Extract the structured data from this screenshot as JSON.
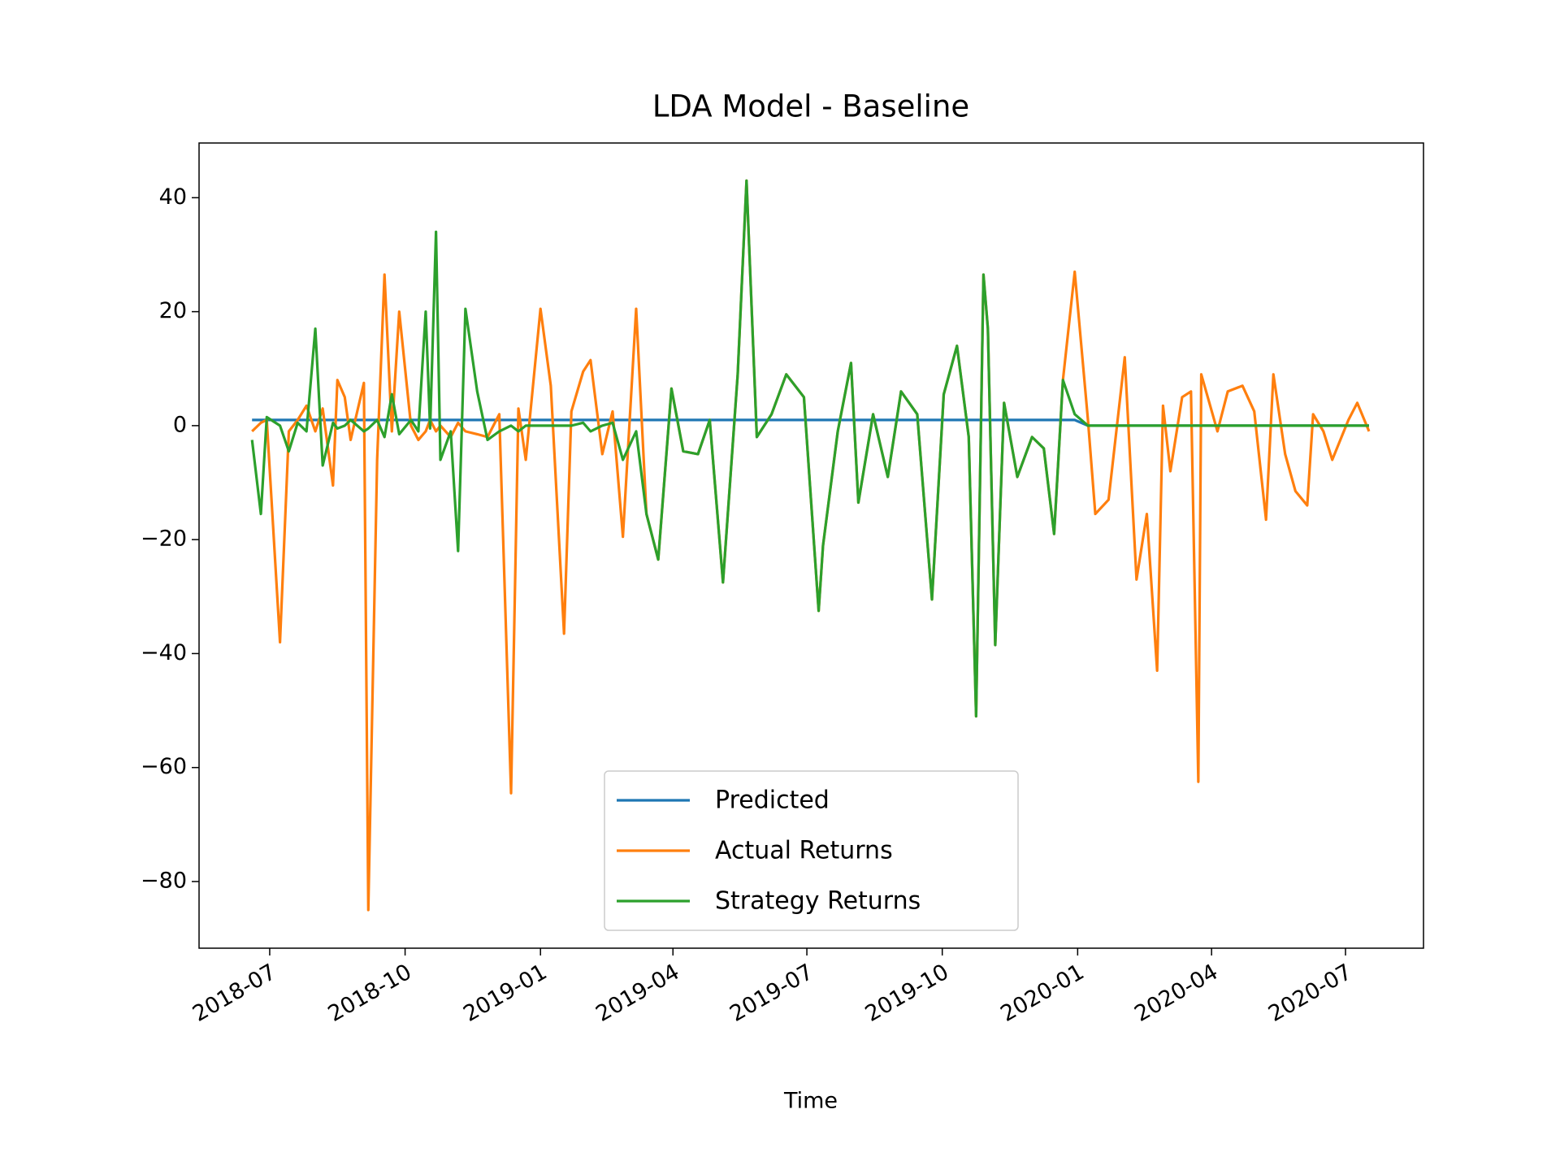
{
  "chart_data": {
    "type": "line",
    "title": "LDA Model - Baseline",
    "x_label": "Time",
    "x": [
      "2018-06-19",
      "2018-06-25",
      "2018-06-29",
      "2018-07-08",
      "2018-07-14",
      "2018-07-20",
      "2018-07-26",
      "2018-08-01",
      "2018-08-06",
      "2018-08-13",
      "2018-08-16",
      "2018-08-21",
      "2018-08-25",
      "2018-09-03",
      "2018-09-06",
      "2018-09-12",
      "2018-09-17",
      "2018-09-22",
      "2018-09-27",
      "2018-10-05",
      "2018-10-10",
      "2018-10-15",
      "2018-10-18",
      "2018-10-22",
      "2018-10-25",
      "2018-11-01",
      "2018-11-06",
      "2018-11-11",
      "2018-11-19",
      "2018-11-26",
      "2018-12-04",
      "2018-12-12",
      "2018-12-17",
      "2018-12-22",
      "2019-01-01",
      "2019-01-08",
      "2019-01-17",
      "2019-01-22",
      "2019-01-30",
      "2019-02-04",
      "2019-02-12",
      "2019-02-19",
      "2019-02-26",
      "2019-03-07",
      "2019-03-14",
      "2019-03-22",
      "2019-03-31",
      "2019-04-08",
      "2019-04-18",
      "2019-04-26",
      "2019-05-05",
      "2019-05-15",
      "2019-05-21",
      "2019-05-28",
      "2019-06-07",
      "2019-06-17",
      "2019-06-29",
      "2019-07-09",
      "2019-07-12",
      "2019-07-22",
      "2019-07-31",
      "2019-08-05",
      "2019-08-15",
      "2019-08-25",
      "2019-09-03",
      "2019-09-14",
      "2019-09-24",
      "2019-10-02",
      "2019-10-11",
      "2019-10-19",
      "2019-10-24",
      "2019-10-29",
      "2019-11-01",
      "2019-11-06",
      "2019-11-12",
      "2019-11-21",
      "2019-12-01",
      "2019-12-09",
      "2019-12-16",
      "2019-12-22",
      "2019-12-30",
      "2020-01-08",
      "2020-01-13",
      "2020-01-22",
      "2020-02-02",
      "2020-02-10",
      "2020-02-17",
      "2020-02-24",
      "2020-02-28",
      "2020-03-04",
      "2020-03-12",
      "2020-03-18",
      "2020-03-23",
      "2020-03-25",
      "2020-04-05",
      "2020-04-12",
      "2020-04-22",
      "2020-04-30",
      "2020-05-08",
      "2020-05-13",
      "2020-05-21",
      "2020-05-28",
      "2020-06-05",
      "2020-06-09",
      "2020-06-16",
      "2020-06-22",
      "2020-07-03",
      "2020-07-09",
      "2020-07-17"
    ],
    "series": [
      {
        "name": "Predicted",
        "color": "#1f77b4",
        "values": [
          1,
          1,
          1,
          1,
          1,
          1,
          1,
          1,
          1,
          1,
          1,
          1,
          1,
          1,
          1,
          1,
          1,
          1,
          1,
          1,
          1,
          1,
          1,
          1,
          1,
          1,
          1,
          1,
          1,
          1,
          1,
          1,
          1,
          1,
          1,
          1,
          1,
          1,
          1,
          1,
          1,
          1,
          1,
          1,
          1,
          1,
          1,
          1,
          1,
          1,
          1,
          1,
          1,
          1,
          1,
          1,
          1,
          1,
          1,
          1,
          1,
          1,
          1,
          1,
          1,
          1,
          1,
          1,
          1,
          1,
          1,
          1,
          1,
          1,
          1,
          1,
          1,
          1,
          1,
          1,
          1,
          0,
          0,
          0,
          0,
          0,
          0,
          0,
          0,
          0,
          0,
          0,
          0,
          0,
          0,
          0,
          0,
          0,
          0,
          0,
          0,
          0,
          0,
          0,
          0,
          0,
          0,
          0,
          0
        ]
      },
      {
        "name": "Actual Returns",
        "color": "#ff7f0e",
        "values": [
          -1,
          0.5,
          1,
          -38,
          -1,
          1,
          3.5,
          -1,
          3,
          -10.5,
          8,
          5,
          -2.5,
          7.5,
          -85,
          -6,
          26.5,
          -1,
          20,
          0,
          -2.5,
          -1,
          1,
          -1,
          0,
          -2,
          0.5,
          -1,
          -1.5,
          -2,
          2,
          -64.5,
          3,
          -6,
          20.5,
          7,
          -36.5,
          2.5,
          9.5,
          11.5,
          -5,
          2.5,
          -19.5,
          20.5,
          -15.5,
          -23.5,
          6.5,
          -4.5,
          -5,
          1,
          -27.5,
          9,
          43,
          -2,
          2,
          9,
          5,
          -32.5,
          -21,
          -1,
          11,
          -13.5,
          2,
          -9,
          6,
          2,
          -30.5,
          5.5,
          14,
          -2,
          -51,
          26.5,
          17,
          -38.5,
          4,
          -9,
          -2,
          -4,
          -19,
          8,
          27,
          1,
          -15.5,
          -13,
          12,
          -27,
          -15.5,
          -43,
          3.5,
          -8,
          5,
          6,
          -62.5,
          9,
          -1,
          6,
          7,
          2.5,
          -16.5,
          9,
          -5,
          -11.5,
          -14,
          2,
          -1,
          -6,
          1,
          4,
          -1
        ]
      },
      {
        "name": "Strategy Returns",
        "color": "#2ca02c",
        "values": [
          -2.5,
          -15.5,
          1.5,
          0,
          -4.5,
          0.5,
          -1,
          17,
          -7,
          0.5,
          -0.5,
          0,
          1,
          -1,
          -0.5,
          1,
          -2,
          5.5,
          -1.5,
          1,
          -1,
          20,
          -0.5,
          34,
          -6,
          -1,
          -22,
          20.5,
          6,
          -2.5,
          -1,
          0,
          -1,
          0,
          0,
          0,
          0,
          0,
          0.5,
          -1,
          0,
          0.5,
          -6,
          -1,
          -15.5,
          -23.5,
          6.5,
          -4.5,
          -5,
          1,
          -27.5,
          9,
          43,
          -2,
          2,
          9,
          5,
          -32.5,
          -21,
          -1,
          11,
          -13.5,
          2,
          -9,
          6,
          2,
          -30.5,
          5.5,
          14,
          -2,
          -51,
          26.5,
          17,
          -38.5,
          4,
          -9,
          -2,
          -4,
          -19,
          8,
          2,
          0,
          0,
          0,
          0,
          0,
          0,
          0,
          0,
          0,
          0,
          0,
          0,
          0,
          0,
          0,
          0,
          0,
          0,
          0,
          0,
          0,
          0,
          0,
          0,
          0,
          0,
          0,
          0
        ]
      }
    ],
    "xlim": [
      "2018-05-14",
      "2020-08-23"
    ],
    "xticks": [
      "2018-07",
      "2018-10",
      "2019-01",
      "2019-04",
      "2019-07",
      "2019-10",
      "2020-01",
      "2020-04",
      "2020-07"
    ],
    "ylim": [
      -91.7,
      49.6
    ],
    "yticks": [
      {
        "value": -80,
        "label": "−80"
      },
      {
        "value": -60,
        "label": "−60"
      },
      {
        "value": -40,
        "label": "−40"
      },
      {
        "value": -20,
        "label": "−20"
      },
      0,
      20,
      40
    ],
    "grid": false,
    "legend": "lower center"
  }
}
